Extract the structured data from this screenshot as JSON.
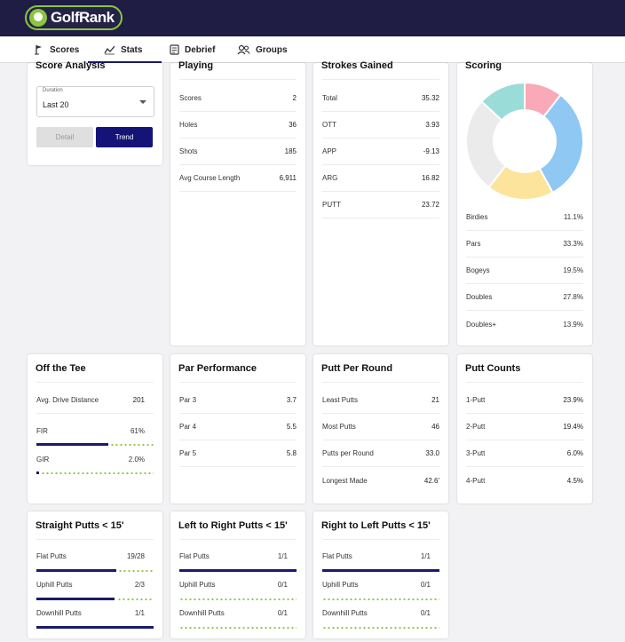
{
  "app": {
    "logo_text": "GolfRank"
  },
  "tabs": [
    {
      "label": "Scores",
      "icon": "flag-icon"
    },
    {
      "label": "Stats",
      "icon": "chart-line-icon",
      "active": true
    },
    {
      "label": "Debrief",
      "icon": "document-icon"
    },
    {
      "label": "Groups",
      "icon": "people-icon"
    }
  ],
  "score_analysis": {
    "title": "Score Analysis",
    "duration_label": "Duration",
    "duration_value": "Last 20",
    "detail_label": "Detail",
    "trend_label": "Trend"
  },
  "playing": {
    "title": "Playing",
    "rows": [
      {
        "label": "Scores",
        "value": "2"
      },
      {
        "label": "Holes",
        "value": "36"
      },
      {
        "label": "Shots",
        "value": "185"
      },
      {
        "label": "Avg Course Length",
        "value": "6,911"
      }
    ]
  },
  "strokes_gained": {
    "title": "Strokes Gained",
    "rows": [
      {
        "label": "Total",
        "value": "35.32"
      },
      {
        "label": "OTT",
        "value": "3.93"
      },
      {
        "label": "APP",
        "value": "-9.13"
      },
      {
        "label": "ARG",
        "value": "16.82"
      },
      {
        "label": "PUTT",
        "value": "23.72"
      }
    ]
  },
  "scoring": {
    "title": "Scoring",
    "rows": [
      {
        "label": "Birdies",
        "value": "11.1%"
      },
      {
        "label": "Pars",
        "value": "33.3%"
      },
      {
        "label": "Bogeys",
        "value": "19.5%"
      },
      {
        "label": "Doubles",
        "value": "27.8%"
      },
      {
        "label": "Doubles+",
        "value": "13.9%"
      }
    ]
  },
  "chart_data": {
    "type": "pie",
    "donut": true,
    "categories": [
      "Birdies",
      "Pars",
      "Bogeys",
      "Doubles",
      "Doubles+"
    ],
    "values": [
      11.1,
      33.3,
      19.5,
      27.8,
      13.9
    ],
    "colors": [
      "#f9a9b8",
      "#8ec8f3",
      "#fde49c",
      "#ebebeb",
      "#9adcd8"
    ]
  },
  "off_the_tee": {
    "title": "Off the Tee",
    "drive_label": "Avg. Drive Distance",
    "drive_value": "201",
    "bars": [
      {
        "label": "FIR",
        "value": "61%",
        "fraction": 0.61
      },
      {
        "label": "GIR",
        "value": "2.0%",
        "fraction": 0.02
      }
    ]
  },
  "par_performance": {
    "title": "Par Performance",
    "rows": [
      {
        "label": "Par 3",
        "value": "3.7"
      },
      {
        "label": "Par 4",
        "value": "5.5"
      },
      {
        "label": "Par 5",
        "value": "5.8"
      }
    ]
  },
  "putt_per_round": {
    "title": "Putt Per Round",
    "rows": [
      {
        "label": "Least Putts",
        "value": "21"
      },
      {
        "label": "Most Putts",
        "value": "46"
      },
      {
        "label": "Putts per Round",
        "value": "33.0"
      },
      {
        "label": "Longest Made",
        "value": "42.6'"
      }
    ]
  },
  "putt_counts": {
    "title": "Putt Counts",
    "rows": [
      {
        "label": "1-Putt",
        "value": "23.9%"
      },
      {
        "label": "2-Putt",
        "value": "19.4%"
      },
      {
        "label": "3-Putt",
        "value": "6.0%"
      },
      {
        "label": "4-Putt",
        "value": "4.5%"
      }
    ]
  },
  "straight_putts": {
    "title": "Straight Putts < 15'",
    "bars": [
      {
        "label": "Flat Putts",
        "value": "19/28",
        "fraction": 0.68
      },
      {
        "label": "Uphill Putts",
        "value": "2/3",
        "fraction": 0.67
      },
      {
        "label": "Downhill Putts",
        "value": "1/1",
        "fraction": 1.0
      }
    ]
  },
  "left_right_putts": {
    "title": "Left to Right Putts < 15'",
    "bars": [
      {
        "label": "Flat Putts",
        "value": "1/1",
        "fraction": 1.0
      },
      {
        "label": "Uphill Putts",
        "value": "0/1",
        "fraction": 0.0
      },
      {
        "label": "Downhill Putts",
        "value": "0/1",
        "fraction": 0.0
      }
    ]
  },
  "right_left_putts": {
    "title": "Right to Left Putts < 15'",
    "bars": [
      {
        "label": "Flat Putts",
        "value": "1/1",
        "fraction": 1.0
      },
      {
        "label": "Uphill Putts",
        "value": "0/1",
        "fraction": 0.0
      },
      {
        "label": "Downhill Putts",
        "value": "0/1",
        "fraction": 0.0
      }
    ]
  }
}
